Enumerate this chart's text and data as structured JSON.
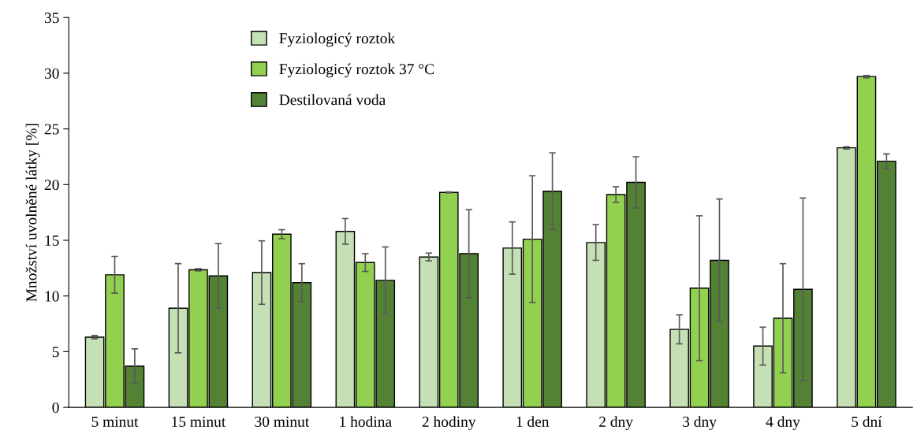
{
  "chart_data": {
    "type": "bar",
    "ylabel": "Množství uvolněné látky [%]",
    "categories": [
      "5 minut",
      "15 minut",
      "30 minut",
      "1 hodina",
      "2 hodiny",
      "1 den",
      "2 dny",
      "3 dny",
      "4 dny",
      "5 dní"
    ],
    "series": [
      {
        "name": "Fyziologicý roztok",
        "color": "#c5e0b4",
        "values": [
          6.3,
          8.9,
          12.1,
          15.8,
          13.5,
          14.3,
          14.8,
          7.0,
          5.5,
          23.3
        ],
        "errors": [
          0.15,
          4.0,
          2.85,
          1.15,
          0.35,
          2.35,
          1.6,
          1.3,
          1.7,
          0.1
        ]
      },
      {
        "name": "Fyziologicý roztok 37 °C",
        "color": "#92d050",
        "values": [
          11.9,
          12.35,
          15.55,
          13.0,
          19.3,
          15.1,
          19.1,
          10.7,
          8.0,
          29.7
        ],
        "errors": [
          1.65,
          0.1,
          0.4,
          0.8,
          0.05,
          5.7,
          0.7,
          6.5,
          4.9,
          0.1
        ]
      },
      {
        "name": "Destilovaná voda",
        "color": "#548235",
        "values": [
          3.7,
          11.8,
          11.2,
          11.4,
          13.8,
          19.4,
          20.2,
          13.2,
          10.6,
          22.1
        ],
        "errors": [
          1.55,
          2.9,
          1.7,
          3.0,
          3.95,
          3.45,
          2.3,
          5.5,
          8.2,
          0.65
        ]
      }
    ],
    "ylim": [
      0,
      35
    ],
    "yticks": [
      0,
      5,
      10,
      15,
      20,
      25,
      30,
      35
    ],
    "grid": false,
    "legend": "top left"
  }
}
